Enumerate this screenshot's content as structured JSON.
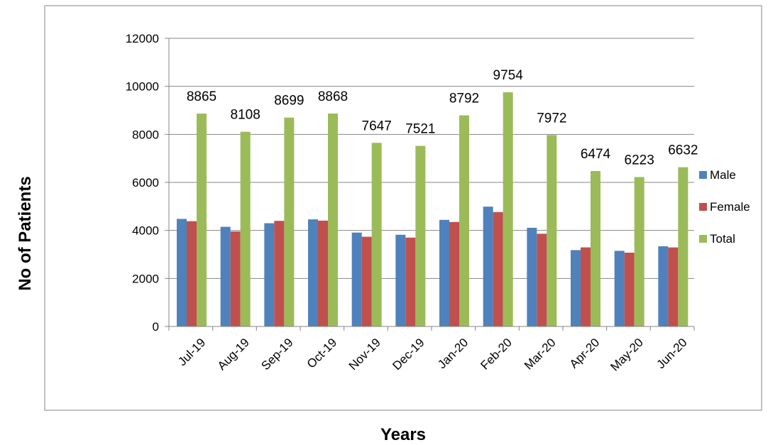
{
  "chart_data": {
    "type": "bar",
    "title": "",
    "xlabel": "Years",
    "ylabel": "No of Patients",
    "ylim": [
      0,
      12000
    ],
    "yticks": [
      0,
      2000,
      4000,
      6000,
      8000,
      10000,
      12000
    ],
    "grid": true,
    "legend_position": "right",
    "categories": [
      "Jul-19",
      "Aug-19",
      "Sep-19",
      "Oct-19",
      "Nov-19",
      "Dec-19",
      "Jan-20",
      "Feb-20",
      "Mar-20",
      "Apr-20",
      "May-20",
      "Jun-20"
    ],
    "series": [
      {
        "name": "Male",
        "color": "#4f81bd",
        "values": [
          4480,
          4150,
          4300,
          4460,
          3910,
          3820,
          4440,
          4990,
          4110,
          3180,
          3150,
          3340
        ]
      },
      {
        "name": "Female",
        "color": "#c0504d",
        "values": [
          4385,
          3958,
          4399,
          4408,
          3737,
          3701,
          4352,
          4764,
          3862,
          3294,
          3073,
          3292
        ]
      },
      {
        "name": "Total",
        "color": "#9bbb59",
        "values": [
          8865,
          8108,
          8699,
          8868,
          7647,
          7521,
          8792,
          9754,
          7972,
          6474,
          6223,
          6632
        ]
      }
    ],
    "data_labels": [
      "8865",
      "8108",
      "8699",
      "8868",
      "7647",
      "7521",
      "8792",
      "9754",
      "7972",
      "6474",
      "6223",
      "6632"
    ]
  }
}
